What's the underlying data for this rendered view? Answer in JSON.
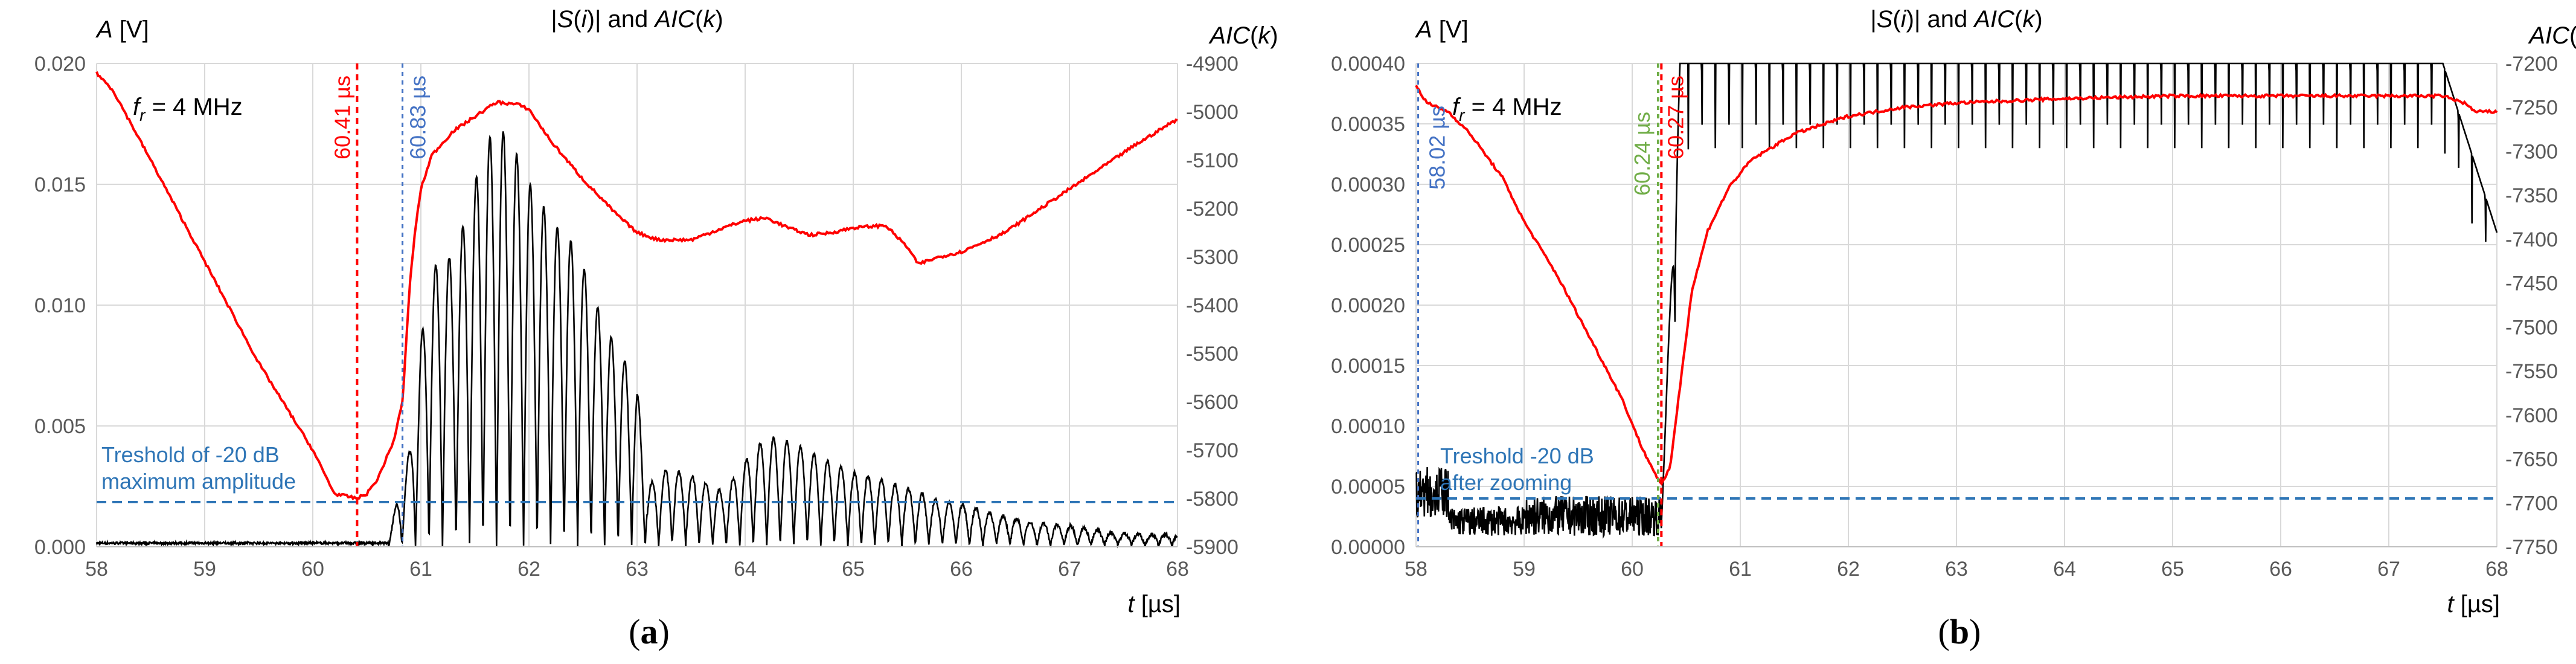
{
  "chart_data": [
    {
      "type": "line",
      "panel_label": "(a)",
      "panel_letter": "a",
      "title_parts": [
        "|",
        "S",
        "(",
        "i",
        ")| and ",
        "AIC",
        "(",
        "k",
        ")"
      ],
      "left_axis_label": {
        "sym": "A",
        "unit": "[V]"
      },
      "right_axis_label": {
        "sym": "AIC",
        "arg": "(k)"
      },
      "x_label": {
        "sym": "t",
        "unit": "[µs]"
      },
      "freq_label": {
        "sym": "f",
        "sub": "r",
        "text": " =  4 MHz"
      },
      "xlim": [
        58,
        68
      ],
      "x_ticks": [
        58,
        59,
        60,
        61,
        62,
        63,
        64,
        65,
        66,
        67,
        68
      ],
      "y_left_lim": [
        0,
        0.02
      ],
      "y_left_ticks": [
        "0.000",
        "0.005",
        "0.010",
        "0.015",
        "0.020"
      ],
      "y_left_tick_values": [
        0,
        0.005,
        0.01,
        0.015,
        0.02
      ],
      "y_right_lim": [
        -5900,
        -4900
      ],
      "y_right_ticks": [
        -5900,
        -5800,
        -5700,
        -5600,
        -5500,
        -5400,
        -5300,
        -5200,
        -5100,
        -5000,
        -4900
      ],
      "grid": true,
      "threshold": {
        "y": 0.00185,
        "color": "#2E75B6",
        "labels": [
          "Treshold of -20 dB",
          "maximum amplitude"
        ]
      },
      "vlines": [
        {
          "x": 60.41,
          "label": "60.41 µs",
          "color": "#FF0000"
        },
        {
          "x": 60.83,
          "label": "60.83 µs",
          "color": "#4472C4"
        }
      ],
      "series": [
        {
          "name": "|S(i)|",
          "axis": "left",
          "color": "#000000",
          "kind": "osc",
          "noise_level": 0.00018,
          "onset": 60.7,
          "envelope": [
            [
              60.7,
              0.0004
            ],
            [
              60.9,
              0.004
            ],
            [
              61.0,
              0.0085
            ],
            [
              61.1,
              0.0115
            ],
            [
              61.3,
              0.012
            ],
            [
              61.45,
              0.014
            ],
            [
              61.55,
              0.016
            ],
            [
              61.7,
              0.0175
            ],
            [
              61.85,
              0.0165
            ],
            [
              62.0,
              0.015
            ],
            [
              62.2,
              0.0135
            ],
            [
              62.4,
              0.0125
            ],
            [
              62.55,
              0.011
            ],
            [
              62.7,
              0.009
            ],
            [
              62.85,
              0.008
            ],
            [
              63.0,
              0.0065
            ],
            [
              63.1,
              0.0025
            ],
            [
              63.3,
              0.0032
            ],
            [
              63.55,
              0.0028
            ],
            [
              63.8,
              0.0022
            ],
            [
              64.05,
              0.0038
            ],
            [
              64.2,
              0.0045
            ],
            [
              64.45,
              0.0042
            ],
            [
              64.7,
              0.0036
            ],
            [
              65.0,
              0.003
            ],
            [
              65.2,
              0.0028
            ],
            [
              65.45,
              0.0024
            ],
            [
              65.6,
              0.0022
            ],
            [
              65.8,
              0.0018
            ],
            [
              66.0,
              0.0017
            ],
            [
              66.3,
              0.0013
            ],
            [
              66.7,
              0.0009
            ],
            [
              67.0,
              0.0008
            ],
            [
              67.4,
              0.0005
            ],
            [
              68.0,
              0.0004
            ]
          ],
          "period": 0.125
        },
        {
          "name": "AIC(k)",
          "axis": "right",
          "color": "#FF0000",
          "kind": "poly",
          "points": [
            [
              58.0,
              -4920
            ],
            [
              58.15,
              -4955
            ],
            [
              58.5,
              -5100
            ],
            [
              59.0,
              -5310
            ],
            [
              59.5,
              -5520
            ],
            [
              60.0,
              -5700
            ],
            [
              60.2,
              -5790
            ],
            [
              60.3,
              -5795
            ],
            [
              60.41,
              -5800
            ],
            [
              60.5,
              -5790
            ],
            [
              60.6,
              -5760
            ],
            [
              60.75,
              -5680
            ],
            [
              60.83,
              -5600
            ],
            [
              60.9,
              -5350
            ],
            [
              60.95,
              -5240
            ],
            [
              61.0,
              -5160
            ],
            [
              61.1,
              -5090
            ],
            [
              61.3,
              -5040
            ],
            [
              61.5,
              -5010
            ],
            [
              61.7,
              -4980
            ],
            [
              61.9,
              -4985
            ],
            [
              62.0,
              -4995
            ],
            [
              62.2,
              -5060
            ],
            [
              62.5,
              -5140
            ],
            [
              62.8,
              -5210
            ],
            [
              63.0,
              -5250
            ],
            [
              63.2,
              -5265
            ],
            [
              63.5,
              -5265
            ],
            [
              63.8,
              -5240
            ],
            [
              64.0,
              -5225
            ],
            [
              64.2,
              -5220
            ],
            [
              64.4,
              -5240
            ],
            [
              64.6,
              -5255
            ],
            [
              64.8,
              -5250
            ],
            [
              65.0,
              -5240
            ],
            [
              65.3,
              -5235
            ],
            [
              65.5,
              -5280
            ],
            [
              65.6,
              -5315
            ],
            [
              65.8,
              -5300
            ],
            [
              66.0,
              -5290
            ],
            [
              66.4,
              -5250
            ],
            [
              66.8,
              -5190
            ],
            [
              67.2,
              -5130
            ],
            [
              67.6,
              -5070
            ],
            [
              68.0,
              -5015
            ]
          ]
        }
      ]
    },
    {
      "type": "line",
      "panel_label": "(b)",
      "panel_letter": "b",
      "title_parts": [
        "|",
        "S",
        "(",
        "i",
        ")| and ",
        "AIC",
        "(",
        "k",
        ")"
      ],
      "left_axis_label": {
        "sym": "A",
        "unit": "[V]"
      },
      "right_axis_label": {
        "sym": "AIC",
        "arg": "(k)"
      },
      "x_label": {
        "sym": "t",
        "unit": "[µs]"
      },
      "freq_label": {
        "sym": "f",
        "sub": "r",
        "text": " =  4 MHz"
      },
      "xlim": [
        58,
        68
      ],
      "x_ticks": [
        58,
        59,
        60,
        61,
        62,
        63,
        64,
        65,
        66,
        67,
        68
      ],
      "y_left_lim": [
        0,
        0.0004
      ],
      "y_left_ticks": [
        "0.00000",
        "0.00005",
        "0.00010",
        "0.00015",
        "0.00020",
        "0.00025",
        "0.00030",
        "0.00035",
        "0.00040"
      ],
      "y_left_tick_values": [
        0,
        5e-05,
        0.0001,
        0.00015,
        0.0002,
        0.00025,
        0.0003,
        0.00035,
        0.0004
      ],
      "y_right_lim": [
        -7750,
        -7200
      ],
      "y_right_ticks": [
        -7750,
        -7700,
        -7650,
        -7600,
        -7550,
        -7500,
        -7450,
        -7400,
        -7350,
        -7300,
        -7250,
        -7200
      ],
      "grid": true,
      "threshold": {
        "y": 4e-05,
        "color": "#2E75B6",
        "labels": [
          "Treshold -20 dB",
          "after zooming"
        ]
      },
      "vlines": [
        {
          "x": 58.02,
          "label": "58.02 µs",
          "color": "#4472C4"
        },
        {
          "x": 60.24,
          "label": "60.24 µs",
          "color": "#70AD47"
        },
        {
          "x": 60.27,
          "label": "60.27 µs",
          "color": "#FF0000"
        }
      ],
      "series": [
        {
          "name": "|S(i)|",
          "axis": "left",
          "color": "#000000",
          "kind": "clip",
          "noise_level": 3e-05,
          "onset": 60.27,
          "period": 0.125,
          "ceiling": 0.0004
        },
        {
          "name": "AIC(k)",
          "axis": "right",
          "color": "#FF0000",
          "kind": "poly",
          "points": [
            [
              58.0,
              -7225
            ],
            [
              58.1,
              -7245
            ],
            [
              58.3,
              -7255
            ],
            [
              58.5,
              -7280
            ],
            [
              58.8,
              -7330
            ],
            [
              59.0,
              -7380
            ],
            [
              59.3,
              -7440
            ],
            [
              59.6,
              -7510
            ],
            [
              59.9,
              -7580
            ],
            [
              60.1,
              -7640
            ],
            [
              60.27,
              -7680
            ],
            [
              60.35,
              -7660
            ],
            [
              60.45,
              -7560
            ],
            [
              60.55,
              -7460
            ],
            [
              60.7,
              -7390
            ],
            [
              60.9,
              -7340
            ],
            [
              61.1,
              -7310
            ],
            [
              61.5,
              -7280
            ],
            [
              62.0,
              -7260
            ],
            [
              62.5,
              -7250
            ],
            [
              63.0,
              -7245
            ],
            [
              64.0,
              -7240
            ],
            [
              65.0,
              -7237
            ],
            [
              66.0,
              -7237
            ],
            [
              67.0,
              -7237
            ],
            [
              67.5,
              -7237
            ],
            [
              67.7,
              -7245
            ],
            [
              67.8,
              -7255
            ],
            [
              68.0,
              -7255
            ]
          ]
        }
      ]
    }
  ]
}
